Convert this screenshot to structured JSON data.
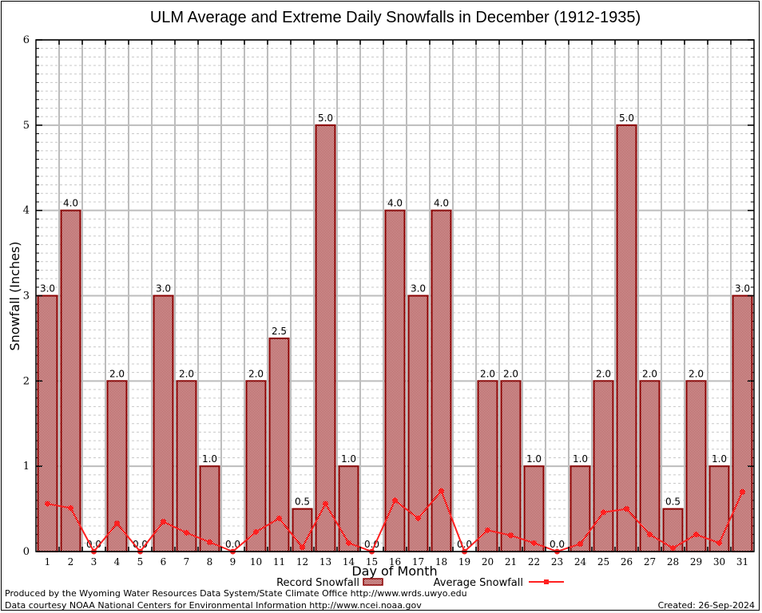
{
  "chart_data": {
    "type": "bar",
    "title": "ULM Average and Extreme Daily Snowfalls in December (1912-1935)",
    "xlabel": "Day of Month",
    "ylabel": "Snowfall (Inches)",
    "ylim": [
      0,
      6
    ],
    "yticks": [
      0,
      1,
      2,
      3,
      4,
      5,
      6
    ],
    "minor_grid_step": 0.1,
    "grid": true,
    "categories": [
      "1",
      "2",
      "3",
      "4",
      "5",
      "6",
      "7",
      "8",
      "9",
      "10",
      "11",
      "12",
      "13",
      "14",
      "15",
      "16",
      "17",
      "18",
      "19",
      "20",
      "21",
      "22",
      "23",
      "24",
      "25",
      "26",
      "27",
      "28",
      "29",
      "30",
      "31"
    ],
    "series": [
      {
        "name": "Record Snowfall",
        "kind": "bar",
        "color": "#8b0000",
        "values": [
          3.0,
          4.0,
          0.0,
          2.0,
          0.0,
          3.0,
          2.0,
          1.0,
          0.0,
          2.0,
          2.5,
          0.5,
          5.0,
          1.0,
          0.0,
          4.0,
          3.0,
          4.0,
          0.0,
          2.0,
          2.0,
          1.0,
          0.0,
          1.0,
          2.0,
          5.0,
          2.0,
          0.5,
          2.0,
          1.0,
          3.0
        ],
        "labels": [
          "3.0",
          "4.0",
          "0.0",
          "2.0",
          "0.0",
          "3.0",
          "2.0",
          "1.0",
          "0.0",
          "2.0",
          "2.5",
          "0.5",
          "5.0",
          "1.0",
          "0.0",
          "4.0",
          "3.0",
          "4.0",
          "0.0",
          "2.0",
          "2.0",
          "1.0",
          "0.0",
          "1.0",
          "2.0",
          "5.0",
          "2.0",
          "0.5",
          "2.0",
          "1.0",
          "3.0"
        ]
      },
      {
        "name": "Average Snowfall",
        "kind": "line",
        "color": "#ff2020",
        "values": [
          0.56,
          0.51,
          0.0,
          0.33,
          0.0,
          0.35,
          0.22,
          0.11,
          0.0,
          0.23,
          0.39,
          0.05,
          0.56,
          0.1,
          0.0,
          0.6,
          0.39,
          0.71,
          0.0,
          0.25,
          0.19,
          0.1,
          0.0,
          0.09,
          0.46,
          0.5,
          0.2,
          0.04,
          0.2,
          0.1,
          0.7
        ]
      }
    ],
    "legend": {
      "placement": "bottom",
      "items": [
        "Record Snowfall",
        "Average Snowfall"
      ]
    }
  },
  "footer": {
    "produced_by": "Produced by the Wyoming Water Resources Data System/State Climate Office http://www.wrds.uwyo.edu",
    "data_courtesy": "Data courtesy NOAA National Centers for Environmental Information http://www.ncei.noaa.gov",
    "created": "Created:  26-Sep-2024"
  }
}
